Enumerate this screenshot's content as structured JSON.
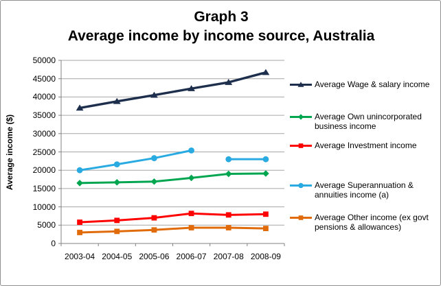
{
  "chart_data": {
    "type": "line",
    "title": "Graph 3",
    "subtitle": "Average income by income source, Australia",
    "xlabel": "",
    "ylabel": "Average income ($)",
    "ylim": [
      0,
      50000
    ],
    "ytick_interval": 5000,
    "ytick_labels": [
      "0",
      "5000",
      "10000",
      "15000",
      "20000",
      "25000",
      "30000",
      "35000",
      "40000",
      "45000",
      "50000"
    ],
    "grid": true,
    "legend_position": "right",
    "categories": [
      "2003-04",
      "2004-05",
      "2005-06",
      "2006-07",
      "2007-08",
      "2008-09"
    ],
    "series": [
      {
        "key": "wage-salary",
        "name": "Average Wage & salary income",
        "legend_lines": [
          "Average Wage & salary income"
        ],
        "color": "#1d2f4d",
        "marker": "triangle",
        "values": [
          37000,
          38800,
          40500,
          42300,
          44000,
          46700
        ]
      },
      {
        "key": "own-business",
        "name": "Average Own unincorporated business income",
        "legend_lines": [
          "Average Own unincorporated",
          "business income"
        ],
        "color": "#00a550",
        "marker": "diamond",
        "values": [
          16500,
          16700,
          16900,
          17900,
          19000,
          19100
        ]
      },
      {
        "key": "investment",
        "name": "Average Investment income",
        "legend_lines": [
          "Average Investment income"
        ],
        "color": "#fe0000",
        "marker": "square",
        "values": [
          5800,
          6300,
          7000,
          8200,
          7800,
          8000
        ]
      },
      {
        "key": "superannuation",
        "name": "Average Superannuation & annuities income (a)",
        "legend_lines": [
          "Average Superannuation &",
          "annuities income (a)"
        ],
        "color": "#29abe2",
        "marker": "circle",
        "values": [
          20000,
          21600,
          23300,
          25400,
          23000,
          23000
        ],
        "line_break_after_index": 3
      },
      {
        "key": "other-income",
        "name": "Average Other income (ex govt pensions & allowances)",
        "legend_lines": [
          "Average Other income (ex govt",
          "pensions & allowances)"
        ],
        "color": "#e16b0a",
        "marker": "square",
        "values": [
          3000,
          3300,
          3700,
          4300,
          4300,
          4100
        ]
      }
    ],
    "colors": {
      "gridline": "#a6a6a6",
      "axis": "#808080",
      "text": "#000000",
      "background": "#ffffff",
      "border": "#8f8f8f"
    }
  }
}
